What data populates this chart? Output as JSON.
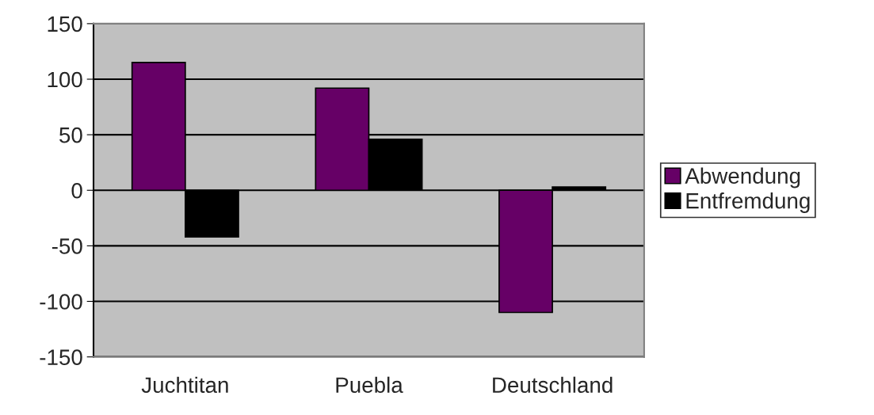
{
  "chart_data": {
    "type": "bar",
    "categories": [
      "Juchtitan",
      "Puebla",
      "Deutschland"
    ],
    "series": [
      {
        "name": "Abwendung",
        "color": "#660066",
        "values": [
          115,
          92,
          -110
        ]
      },
      {
        "name": "Entfremdung",
        "color": "#000000",
        "values": [
          -42,
          46,
          3
        ]
      }
    ],
    "ylim": [
      -150,
      150
    ],
    "yticks": [
      -150,
      -100,
      -50,
      0,
      50,
      100,
      150
    ],
    "grid": "y",
    "legend": "right"
  }
}
